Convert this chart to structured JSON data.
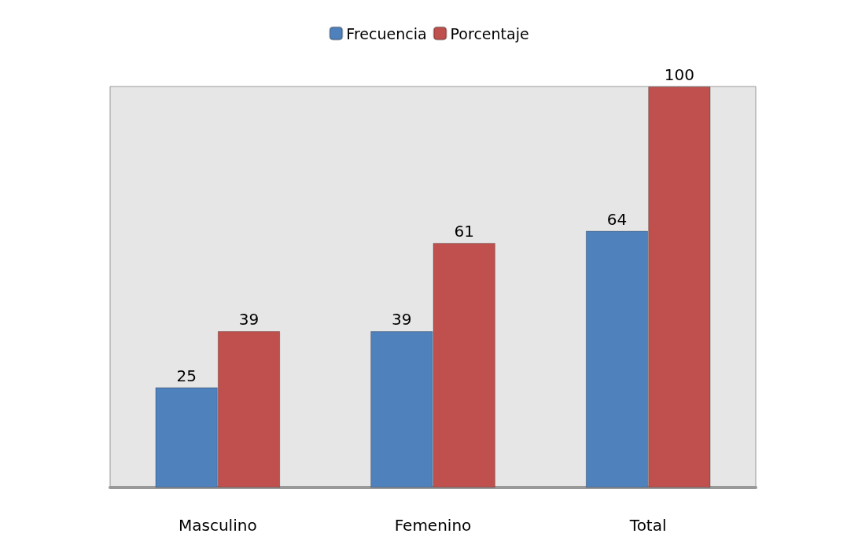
{
  "chart_data": {
    "type": "bar",
    "categories": [
      "Masculino",
      "Femenino",
      "Total"
    ],
    "series": [
      {
        "name": "Frecuencia",
        "color": "#4f81bd",
        "values": [
          25,
          39,
          64
        ]
      },
      {
        "name": "Porcentaje",
        "color": "#c0504d",
        "values": [
          39,
          61,
          100
        ]
      }
    ],
    "data_labels": true,
    "legend": "top"
  }
}
